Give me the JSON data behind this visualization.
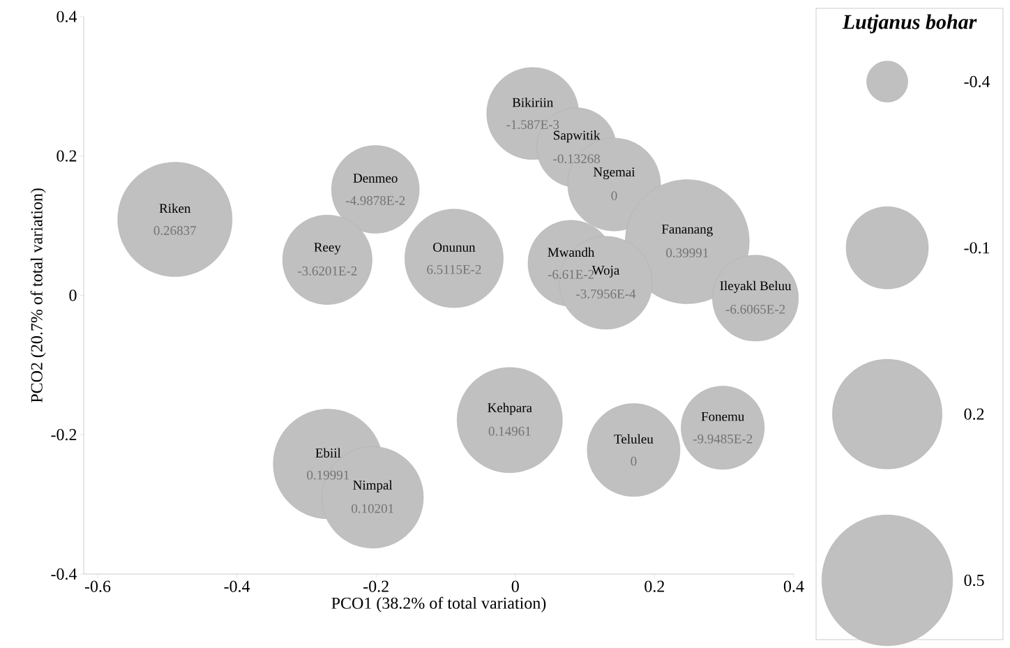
{
  "chart_data": {
    "type": "bubble",
    "xlabel": "PCO1 (38.2% of total variation)",
    "ylabel": "PCO2 (20.7% of total variation)",
    "legend_title": "Lutjanus bohar",
    "legend": "right",
    "size_legend": [
      {
        "value": 0.11,
        "label": "-0.4"
      },
      {
        "value": 0.44,
        "label": "-0.1"
      },
      {
        "value": 0.78,
        "label": "0.2"
      },
      {
        "value": 1.11,
        "label": "0.5"
      }
    ],
    "xlim": [
      -0.62,
      0.4
    ],
    "ylim": [
      -0.4,
      0.4
    ],
    "xticks": [
      -0.6,
      -0.4,
      -0.2,
      0,
      0.2,
      0.4
    ],
    "yticks": [
      -0.4,
      -0.2,
      0,
      0.2,
      0.4
    ],
    "series": [
      {
        "name": "Riken",
        "color": "#c0c0c0",
        "x": [
          -0.489
        ],
        "values": [
          0.109
        ],
        "sizes": [
          0.85
        ]
      },
      {
        "name": "Denmeo",
        "color": "#c0c0c0",
        "x": [
          -0.201
        ],
        "values": [
          0.152
        ],
        "sizes": [
          0.5
        ]
      },
      {
        "name": "Reey",
        "color": "#c0c0c0",
        "x": [
          -0.27
        ],
        "values": [
          0.051
        ],
        "sizes": [
          0.52
        ]
      },
      {
        "name": "Onunun",
        "color": "#c0c0c0",
        "x": [
          -0.088
        ],
        "values": [
          0.053
        ],
        "sizes": [
          0.63
        ]
      },
      {
        "name": "Bikiriin",
        "color": "#c0c0c0",
        "x": [
          0.025
        ],
        "values": [
          0.261
        ],
        "sizes": [
          0.55
        ]
      },
      {
        "name": "Sapwitik",
        "color": "#c0c0c0",
        "x": [
          0.088
        ],
        "values": [
          0.212
        ],
        "sizes": [
          0.41
        ]
      },
      {
        "name": "Ngemai",
        "color": "#c0c0c0",
        "x": [
          0.142
        ],
        "values": [
          0.159
        ],
        "sizes": [
          0.56
        ]
      },
      {
        "name": "Fananang",
        "color": "#c0c0c0",
        "x": [
          0.247
        ],
        "values": [
          0.077
        ],
        "sizes": [
          1
        ]
      },
      {
        "name": "Mwandh",
        "color": "#c0c0c0",
        "x": [
          0.08
        ],
        "values": [
          0.046
        ],
        "sizes": [
          0.48
        ]
      },
      {
        "name": "Woja",
        "color": "#c0c0c0",
        "x": [
          0.13
        ],
        "values": [
          0.018
        ],
        "sizes": [
          0.56
        ]
      },
      {
        "name": "Ileyakl Beluu",
        "color": "#c0c0c0",
        "x": [
          0.345
        ],
        "values": [
          -0.004
        ],
        "sizes": [
          0.48
        ]
      },
      {
        "name": "Kehpara",
        "color": "#c0c0c0",
        "x": [
          -0.008
        ],
        "values": [
          -0.179
        ],
        "sizes": [
          0.72
        ]
      },
      {
        "name": "Fonemu",
        "color": "#c0c0c0",
        "x": [
          0.298
        ],
        "values": [
          -0.19
        ],
        "sizes": [
          0.45
        ]
      },
      {
        "name": "Teluleu",
        "color": "#c0c0c0",
        "x": [
          0.17
        ],
        "values": [
          -0.222
        ],
        "sizes": [
          0.56
        ]
      },
      {
        "name": "Ebiil",
        "color": "#c0c0c0",
        "x": [
          -0.269
        ],
        "values": [
          -0.242
        ],
        "sizes": [
          0.78
        ]
      },
      {
        "name": "Nimpal",
        "color": "#c0c0c0",
        "x": [
          -0.205
        ],
        "values": [
          -0.29
        ],
        "sizes": [
          0.67
        ]
      }
    ],
    "annotations": [
      {
        "text": "0.26837",
        "x": -0.489,
        "y": 0.109
      },
      {
        "text": "-4.9878E-2",
        "x": -0.201,
        "y": 0.152
      },
      {
        "text": "-3.6201E-2",
        "x": -0.27,
        "y": 0.051
      },
      {
        "text": "6.5115E-2",
        "x": -0.088,
        "y": 0.053
      },
      {
        "text": "-1.587E-3",
        "x": 0.025,
        "y": 0.261
      },
      {
        "text": "-0.13268",
        "x": 0.088,
        "y": 0.212
      },
      {
        "text": "0",
        "x": 0.142,
        "y": 0.159
      },
      {
        "text": "0.39991",
        "x": 0.247,
        "y": 0.077
      },
      {
        "text": "-6.61E-2",
        "x": 0.08,
        "y": 0.046
      },
      {
        "text": "-3.7956E-4",
        "x": 0.13,
        "y": 0.018
      },
      {
        "text": "-6.6065E-2",
        "x": 0.345,
        "y": -0.004
      },
      {
        "text": "0.14961",
        "x": -0.008,
        "y": -0.179
      },
      {
        "text": "-9.9485E-2",
        "x": 0.298,
        "y": -0.19
      },
      {
        "text": "0",
        "x": 0.17,
        "y": -0.222
      },
      {
        "text": "0.19991",
        "x": -0.269,
        "y": -0.242
      },
      {
        "text": "0.10201",
        "x": -0.205,
        "y": -0.29
      }
    ]
  }
}
